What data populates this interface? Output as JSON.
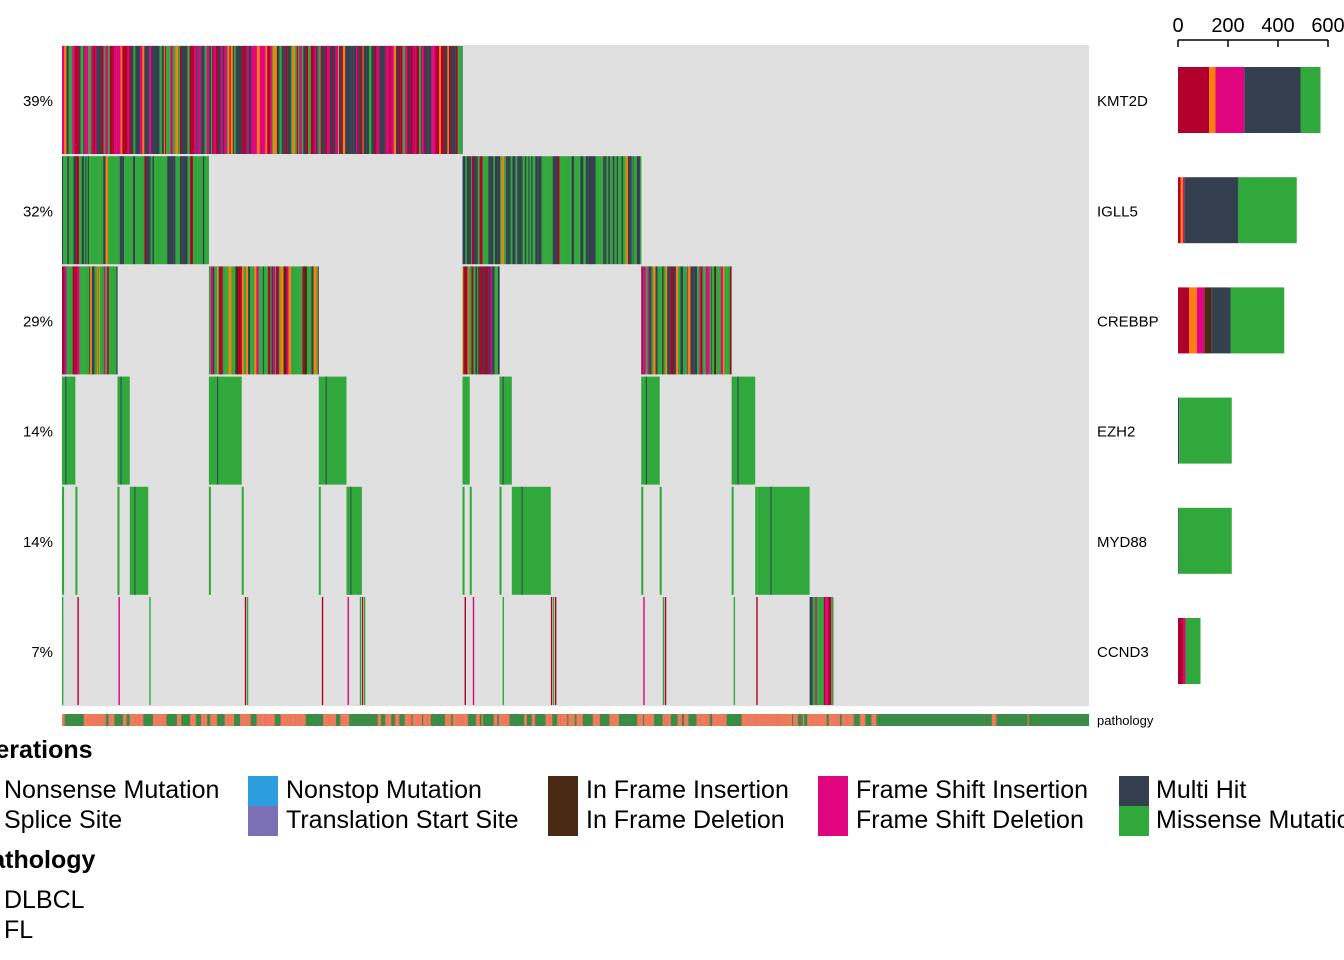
{
  "chart_data": {
    "type": "heatmap",
    "genes": [
      "KMT2D",
      "IGLL5",
      "CREBBP",
      "EZH2",
      "MYD88",
      "CCND3"
    ],
    "percent_labels": [
      "39%",
      "32%",
      "29%",
      "14%",
      "14%",
      "7%"
    ],
    "annotation_label": "pathology",
    "bar_axis_ticks": [
      "0",
      "200",
      "400",
      "600"
    ],
    "bar_axis_range": [
      0,
      600
    ],
    "bar_stack_order": [
      "Nonsense Mutation",
      "Splice Site",
      "Frame Shift Insertion",
      "Frame Shift Deletion",
      "In Frame Deletion",
      "Multi Hit",
      "Missense Mutation"
    ],
    "gene_counts": [
      {
        "gene": "KMT2D",
        "counts": {
          "Nonsense Mutation": 125,
          "Splice Site": 25,
          "Frame Shift Insertion": 0,
          "Frame Shift Deletion": 115,
          "In Frame Deletion": 0,
          "Multi Hit": 225,
          "Missense Mutation": 80
        }
      },
      {
        "gene": "IGLL5",
        "counts": {
          "Nonsense Mutation": 10,
          "Splice Site": 10,
          "Frame Shift Insertion": 0,
          "Frame Shift Deletion": 5,
          "In Frame Deletion": 0,
          "Multi Hit": 215,
          "Missense Mutation": 235
        }
      },
      {
        "gene": "CREBBP",
        "counts": {
          "Nonsense Mutation": 45,
          "Splice Site": 30,
          "Frame Shift Insertion": 0,
          "Frame Shift Deletion": 30,
          "In Frame Deletion": 30,
          "Multi Hit": 75,
          "Missense Mutation": 215
        }
      },
      {
        "gene": "EZH2",
        "counts": {
          "Nonsense Mutation": 0,
          "Splice Site": 0,
          "Frame Shift Insertion": 0,
          "Frame Shift Deletion": 0,
          "In Frame Deletion": 0,
          "Multi Hit": 5,
          "Missense Mutation": 210
        }
      },
      {
        "gene": "MYD88",
        "counts": {
          "Nonsense Mutation": 0,
          "Splice Site": 0,
          "Frame Shift Insertion": 0,
          "Frame Shift Deletion": 0,
          "In Frame Deletion": 0,
          "Multi Hit": 3,
          "Missense Mutation": 212
        }
      },
      {
        "gene": "CCND3",
        "counts": {
          "Nonsense Mutation": 20,
          "Splice Site": 0,
          "Frame Shift Insertion": 10,
          "Frame Shift Deletion": 0,
          "In Frame Deletion": 0,
          "Multi Hit": 0,
          "Missense Mutation": 60
        }
      }
    ],
    "mutation_segments": [
      {
        "gene": "KMT2D",
        "pattern": "kmt2d",
        "start_fraction": 0.0,
        "end_fraction": 0.39
      },
      {
        "gene": "IGLL5",
        "pattern": "igll5",
        "start_fraction": 0.0,
        "end_fraction": 0.143
      },
      {
        "gene": "IGLL5",
        "pattern": "igll5",
        "start_fraction": 0.39,
        "end_fraction": 0.564
      },
      {
        "gene": "CREBBP",
        "pattern": "crebbp",
        "start_fraction": 0.0,
        "end_fraction": 0.054
      },
      {
        "gene": "CREBBP",
        "pattern": "crebbp",
        "start_fraction": 0.143,
        "end_fraction": 0.25
      },
      {
        "gene": "CREBBP",
        "pattern": "crebbp",
        "start_fraction": 0.39,
        "end_fraction": 0.426
      },
      {
        "gene": "CREBBP",
        "pattern": "crebbp",
        "start_fraction": 0.564,
        "end_fraction": 0.652
      },
      {
        "gene": "EZH2",
        "pattern": "missense",
        "start_fraction": 0.0,
        "end_fraction": 0.013
      },
      {
        "gene": "EZH2",
        "pattern": "missense",
        "start_fraction": 0.054,
        "end_fraction": 0.066
      },
      {
        "gene": "EZH2",
        "pattern": "missense",
        "start_fraction": 0.143,
        "end_fraction": 0.175
      },
      {
        "gene": "EZH2",
        "pattern": "missense",
        "start_fraction": 0.25,
        "end_fraction": 0.277
      },
      {
        "gene": "EZH2",
        "pattern": "missense",
        "start_fraction": 0.39,
        "end_fraction": 0.397
      },
      {
        "gene": "EZH2",
        "pattern": "missense",
        "start_fraction": 0.426,
        "end_fraction": 0.438
      },
      {
        "gene": "EZH2",
        "pattern": "missense",
        "start_fraction": 0.564,
        "end_fraction": 0.582
      },
      {
        "gene": "EZH2",
        "pattern": "missense",
        "start_fraction": 0.652,
        "end_fraction": 0.675
      },
      {
        "gene": "MYD88",
        "pattern": "missense",
        "start_fraction": 0.0,
        "end_fraction": 0.002
      },
      {
        "gene": "MYD88",
        "pattern": "missense",
        "start_fraction": 0.013,
        "end_fraction": 0.015
      },
      {
        "gene": "MYD88",
        "pattern": "missense",
        "start_fraction": 0.054,
        "end_fraction": 0.056
      },
      {
        "gene": "MYD88",
        "pattern": "missense",
        "start_fraction": 0.066,
        "end_fraction": 0.084
      },
      {
        "gene": "MYD88",
        "pattern": "missense",
        "start_fraction": 0.143,
        "end_fraction": 0.145
      },
      {
        "gene": "MYD88",
        "pattern": "missense",
        "start_fraction": 0.175,
        "end_fraction": 0.177
      },
      {
        "gene": "MYD88",
        "pattern": "missense",
        "start_fraction": 0.25,
        "end_fraction": 0.252
      },
      {
        "gene": "MYD88",
        "pattern": "missense",
        "start_fraction": 0.277,
        "end_fraction": 0.292
      },
      {
        "gene": "MYD88",
        "pattern": "missense",
        "start_fraction": 0.39,
        "end_fraction": 0.392
      },
      {
        "gene": "MYD88",
        "pattern": "missense",
        "start_fraction": 0.397,
        "end_fraction": 0.399
      },
      {
        "gene": "MYD88",
        "pattern": "missense",
        "start_fraction": 0.426,
        "end_fraction": 0.428
      },
      {
        "gene": "MYD88",
        "pattern": "missense",
        "start_fraction": 0.438,
        "end_fraction": 0.476
      },
      {
        "gene": "MYD88",
        "pattern": "missense",
        "start_fraction": 0.564,
        "end_fraction": 0.566
      },
      {
        "gene": "MYD88",
        "pattern": "missense",
        "start_fraction": 0.582,
        "end_fraction": 0.584
      },
      {
        "gene": "MYD88",
        "pattern": "missense",
        "start_fraction": 0.652,
        "end_fraction": 0.654
      },
      {
        "gene": "MYD88",
        "pattern": "missense",
        "start_fraction": 0.675,
        "end_fraction": 0.677
      },
      {
        "gene": "MYD88",
        "pattern": "missense",
        "start_fraction": 0.677,
        "end_fraction": 0.728
      },
      {
        "gene": "CCND3",
        "pattern": "ccnd3",
        "start_fraction": 0.728,
        "end_fraction": 0.751
      }
    ],
    "ccnd3_sparse_fractions": [
      0.0,
      0.015,
      0.055,
      0.085,
      0.178,
      0.18,
      0.253,
      0.278,
      0.29,
      0.292,
      0.294,
      0.392,
      0.4,
      0.429,
      0.476,
      0.478,
      0.48,
      0.566,
      0.585,
      0.587,
      0.654,
      0.676
    ],
    "pathology_fl_start_fraction": 0.79
  },
  "legends": {
    "alterations": {
      "title": "Alterations",
      "items": [
        {
          "label": "Nonsense Mutation",
          "color": "#b2002d"
        },
        {
          "label": "Splice Site",
          "color": "#ff7f0e"
        },
        {
          "label": "Nonstop Mutation",
          "color": "#2c9ee0"
        },
        {
          "label": "Translation Start Site",
          "color": "#7b6fb6"
        },
        {
          "label": "In Frame Insertion",
          "color": "#4a2a14"
        },
        {
          "label": "In Frame Deletion",
          "color": "#4a2a14"
        },
        {
          "label": "Frame Shift Insertion",
          "color": "#e0047f"
        },
        {
          "label": "Frame Shift Deletion",
          "color": "#e0047f"
        },
        {
          "label": "Multi Hit",
          "color": "#34404f"
        },
        {
          "label": "Missense Mutation",
          "color": "#31a83b"
        }
      ]
    },
    "pathology": {
      "title": "pathology",
      "items": [
        {
          "label": "DLBCL",
          "color": "#f07a5e"
        },
        {
          "label": "FL",
          "color": "#3c8b44"
        }
      ]
    }
  },
  "colors": {
    "background_cell": "#e0e0e0",
    "missense": "#31a83b",
    "nonsense": "#b2002d",
    "splice": "#ff7f0e",
    "frameshift": "#e0047f",
    "inframe": "#4a2a14",
    "multihit": "#34404f",
    "dlbcl": "#f07a5e",
    "fl": "#3c8b44"
  }
}
